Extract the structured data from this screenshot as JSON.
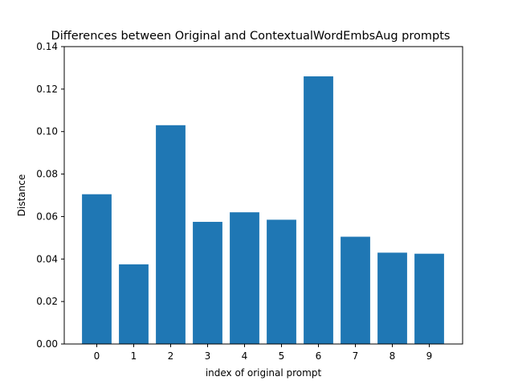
{
  "chart_data": {
    "type": "bar",
    "title": "Differences between Original and ContextualWordEmbsAug prompts",
    "xlabel": "index of original prompt",
    "ylabel": "Distance",
    "categories": [
      "0",
      "1",
      "2",
      "3",
      "4",
      "5",
      "6",
      "7",
      "8",
      "9"
    ],
    "values": [
      0.0705,
      0.0375,
      0.103,
      0.0575,
      0.062,
      0.0585,
      0.126,
      0.0505,
      0.043,
      0.0425
    ],
    "ylim": [
      0,
      0.14
    ],
    "yticks": [
      "0.00",
      "0.02",
      "0.04",
      "0.06",
      "0.08",
      "0.10",
      "0.12",
      "0.14"
    ],
    "grid": false,
    "bar_color": "#1f77b4"
  }
}
